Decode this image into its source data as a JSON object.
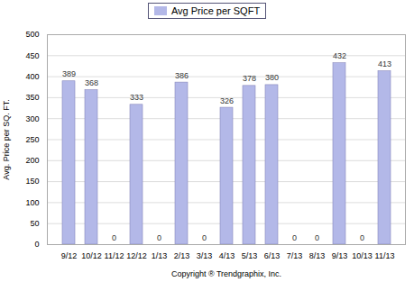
{
  "chart_data": {
    "type": "bar",
    "categories": [
      "9/12",
      "10/12",
      "11/12",
      "12/12",
      "1/13",
      "2/13",
      "3/13",
      "4/13",
      "5/13",
      "6/13",
      "7/13",
      "8/13",
      "9/13",
      "10/13",
      "11/13"
    ],
    "series": [
      {
        "name": "Avg Price per SQFT",
        "color": "#b3b8e8",
        "values": [
          389,
          368,
          0,
          333,
          0,
          386,
          0,
          326,
          378,
          380,
          0,
          0,
          432,
          0,
          413
        ]
      }
    ],
    "ylabel": "Avg. Price per SQ. FT.",
    "xlabel": "Copyright ® Trendgraphix, Inc.",
    "ylim": [
      0,
      500
    ],
    "yticks": [
      0,
      50,
      100,
      150,
      200,
      250,
      300,
      350,
      400,
      450,
      500
    ],
    "grid": true,
    "legend": "top",
    "data_labels": true
  }
}
